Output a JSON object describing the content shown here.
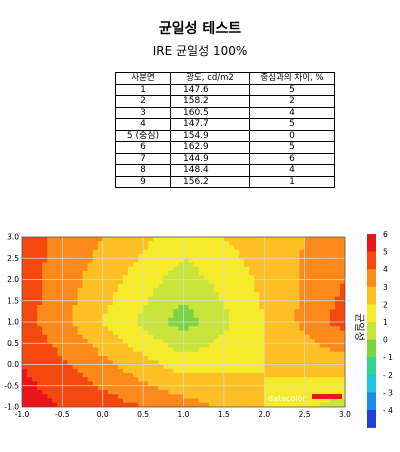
{
  "header": {
    "title": "균일성 테스트",
    "subtitle": "IRE 균일성 100%"
  },
  "table": {
    "headers": [
      "사분면",
      "광도, cd/m2",
      "중심과의 차이, %"
    ],
    "rows": [
      [
        "1",
        "147.6",
        "5"
      ],
      [
        "2",
        "158.2",
        "2"
      ],
      [
        "3",
        "160.5",
        "4"
      ],
      [
        "4",
        "147.7",
        "5"
      ],
      [
        "5 (중심)",
        "154.9",
        "0"
      ],
      [
        "6",
        "162.9",
        "5"
      ],
      [
        "7",
        "144.9",
        "6"
      ],
      [
        "8",
        "148.4",
        "4"
      ],
      [
        "9",
        "156.2",
        "1"
      ]
    ]
  },
  "chart_data": {
    "type": "heatmap",
    "title": "",
    "xlabel": "",
    "ylabel": "",
    "xlim": [
      -1.0,
      3.0
    ],
    "ylim": [
      -1.0,
      3.0
    ],
    "x_ticks": [
      "-1.0",
      "-0.5",
      "0.0",
      "0.5",
      "1.0",
      "1.5",
      "2.0",
      "2.5",
      "3.0"
    ],
    "y_ticks": [
      "3.0",
      "2.5",
      "2.0",
      "1.5",
      "1.0",
      "0.5",
      "0.0",
      "-0.5",
      "-1.0"
    ],
    "grid": true,
    "colorbar_label": "균일성",
    "colorbar_ticks": [
      "6",
      "5",
      "4",
      "3",
      "2",
      "1",
      "0",
      "- 1",
      "- 2",
      "- 3",
      "- 4"
    ],
    "colorbar_colors": [
      "#e8161b",
      "#f4480f",
      "#fb8a1a",
      "#fdc024",
      "#f5eb2a",
      "#c9e43a",
      "#7ad546",
      "#2fd68e",
      "#1cc6e0",
      "#1c8ae8",
      "#1f3fd8"
    ],
    "watermark": "datacolor",
    "data": [
      {
        "position": "top-left",
        "deviation_pct": 5
      },
      {
        "position": "top-center",
        "deviation_pct": 2
      },
      {
        "position": "top-right",
        "deviation_pct": 4
      },
      {
        "position": "middle-left",
        "deviation_pct": 5
      },
      {
        "position": "center",
        "deviation_pct": 0
      },
      {
        "position": "middle-right",
        "deviation_pct": 5
      },
      {
        "position": "bottom-left",
        "deviation_pct": 6
      },
      {
        "position": "bottom-center",
        "deviation_pct": 4
      },
      {
        "position": "bottom-right",
        "deviation_pct": 1
      }
    ]
  }
}
